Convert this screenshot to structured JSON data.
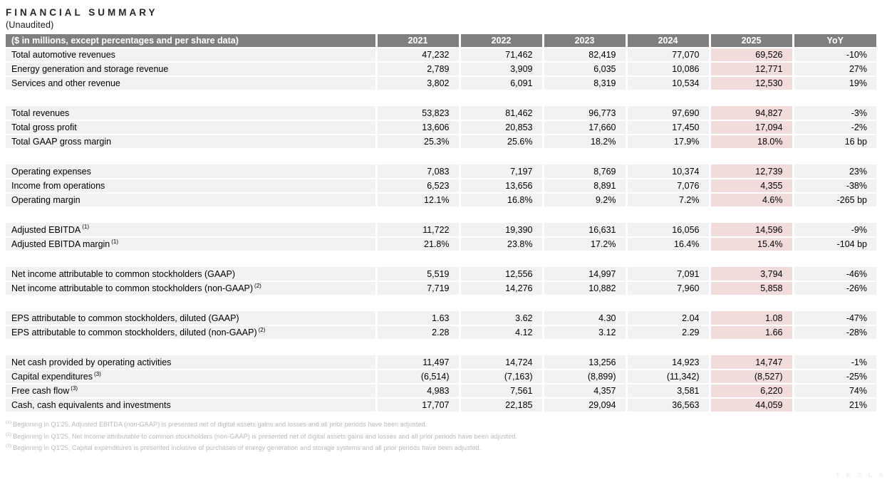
{
  "page": {
    "title": "FINANCIAL SUMMARY",
    "subtitle": "(Unaudited)"
  },
  "colors": {
    "header_bg": "#7f7f7f",
    "header_text": "#ffffff",
    "row_bg": "#f2f2f2",
    "highlight_2025_bg": "#f2dcdb",
    "footnote_text": "#b9b9b9"
  },
  "table": {
    "header": {
      "label": "($ in millions, except percentages and per share data)",
      "columns": [
        "2021",
        "2022",
        "2023",
        "2024",
        "2025",
        "YoY"
      ]
    },
    "rows": [
      {
        "type": "data",
        "label": "Total automotive revenues",
        "values": [
          "47,232",
          "71,462",
          "82,419",
          "77,070",
          "69,526"
        ],
        "yoy": "-10%"
      },
      {
        "type": "data",
        "label": "Energy generation and storage revenue",
        "values": [
          "2,789",
          "3,909",
          "6,035",
          "10,086",
          "12,771"
        ],
        "yoy": "27%"
      },
      {
        "type": "data",
        "label": "Services and other revenue",
        "values": [
          "3,802",
          "6,091",
          "8,319",
          "10,534",
          "12,530"
        ],
        "yoy": "19%"
      },
      {
        "type": "spacer"
      },
      {
        "type": "data",
        "label": "Total revenues",
        "values": [
          "53,823",
          "81,462",
          "96,773",
          "97,690",
          "94,827"
        ],
        "yoy": "-3%"
      },
      {
        "type": "data",
        "label": "Total gross profit",
        "values": [
          "13,606",
          "20,853",
          "17,660",
          "17,450",
          "17,094"
        ],
        "yoy": "-2%"
      },
      {
        "type": "data",
        "label": "Total GAAP gross margin",
        "values": [
          "25.3%",
          "25.6%",
          "18.2%",
          "17.9%",
          "18.0%"
        ],
        "yoy": "16 bp"
      },
      {
        "type": "spacer"
      },
      {
        "type": "data",
        "label": "Operating expenses",
        "values": [
          "7,083",
          "7,197",
          "8,769",
          "10,374",
          "12,739"
        ],
        "yoy": "23%"
      },
      {
        "type": "data",
        "label": "Income from operations",
        "values": [
          "6,523",
          "13,656",
          "8,891",
          "7,076",
          "4,355"
        ],
        "yoy": "-38%"
      },
      {
        "type": "data",
        "label": "Operating margin",
        "values": [
          "12.1%",
          "16.8%",
          "9.2%",
          "7.2%",
          "4.6%"
        ],
        "yoy": "-265 bp"
      },
      {
        "type": "spacer"
      },
      {
        "type": "data",
        "label": "Adjusted EBITDA",
        "sup": "(1)",
        "values": [
          "11,722",
          "19,390",
          "16,631",
          "16,056",
          "14,596"
        ],
        "yoy": "-9%"
      },
      {
        "type": "data",
        "label": "Adjusted EBITDA margin",
        "sup": "(1)",
        "values": [
          "21.8%",
          "23.8%",
          "17.2%",
          "16.4%",
          "15.4%"
        ],
        "yoy": "-104 bp"
      },
      {
        "type": "spacer"
      },
      {
        "type": "data",
        "label": "Net income attributable to common stockholders (GAAP)",
        "values": [
          "5,519",
          "12,556",
          "14,997",
          "7,091",
          "3,794"
        ],
        "yoy": "-46%"
      },
      {
        "type": "data",
        "label": "Net income attributable to common stockholders (non-GAAP)",
        "sup": "(2)",
        "values": [
          "7,719",
          "14,276",
          "10,882",
          "7,960",
          "5,858"
        ],
        "yoy": "-26%"
      },
      {
        "type": "spacer"
      },
      {
        "type": "data",
        "label": "EPS attributable to common stockholders, diluted (GAAP)",
        "values": [
          "1.63",
          "3.62",
          "4.30",
          "2.04",
          "1.08"
        ],
        "yoy": "-47%"
      },
      {
        "type": "data",
        "label": "EPS attributable to common stockholders, diluted (non-GAAP)",
        "sup": "(2)",
        "values": [
          "2.28",
          "4.12",
          "3.12",
          "2.29",
          "1.66"
        ],
        "yoy": "-28%"
      },
      {
        "type": "spacer"
      },
      {
        "type": "data",
        "label": "Net cash provided by operating activities",
        "values": [
          "11,497",
          "14,724",
          "13,256",
          "14,923",
          "14,747"
        ],
        "yoy": "-1%"
      },
      {
        "type": "data",
        "label": "Capital expenditures",
        "sup": "(3)",
        "values": [
          "(6,514)",
          "(7,163)",
          "(8,899)",
          "(11,342)",
          "(8,527)"
        ],
        "yoy": "-25%"
      },
      {
        "type": "data",
        "label": "Free cash flow",
        "sup": "(3)",
        "values": [
          "4,983",
          "7,561",
          "4,357",
          "3,581",
          "6,220"
        ],
        "yoy": "74%"
      },
      {
        "type": "data",
        "label": "Cash, cash equivalents and investments",
        "values": [
          "17,707",
          "22,185",
          "29,094",
          "36,563",
          "44,059"
        ],
        "yoy": "21%"
      }
    ]
  },
  "footnotes": [
    {
      "mark": "(1)",
      "text": "Beginning in Q1'25, Adjusted EBITDA (non-GAAP) is presented net of digital assets gains and losses and all prior periods have been adjusted."
    },
    {
      "mark": "(2)",
      "text": "Beginning in Q1'25, Net income attributable to common stockholders (non-GAAP) is presented net of digital assets gains and losses and all prior periods have been adjusted."
    },
    {
      "mark": "(3)",
      "text": "Beginning in Q1'25, Capital expenditures is presented inclusive of purchases of energy generation and storage systems and all prior periods have been adjusted."
    }
  ],
  "watermark": "TESLA"
}
